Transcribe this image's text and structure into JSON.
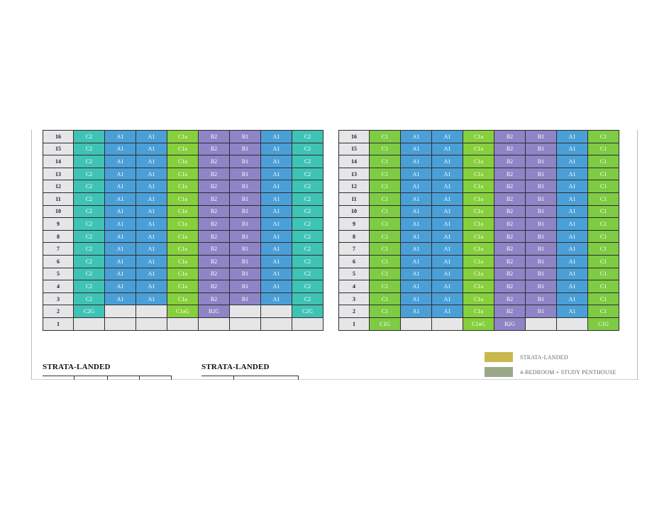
{
  "left_block": {
    "rows": [
      {
        "floor": "16",
        "units": [
          "C2",
          "A1",
          "A1",
          "C1a",
          "B2",
          "B1",
          "A1",
          "C2"
        ]
      },
      {
        "floor": "15",
        "units": [
          "C2",
          "A1",
          "A1",
          "C1a",
          "B2",
          "B1",
          "A1",
          "C2"
        ]
      },
      {
        "floor": "14",
        "units": [
          "C2",
          "A1",
          "A1",
          "C1a",
          "B2",
          "B1",
          "A1",
          "C2"
        ]
      },
      {
        "floor": "13",
        "units": [
          "C2",
          "A1",
          "A1",
          "C1a",
          "B2",
          "B1",
          "A1",
          "C2"
        ]
      },
      {
        "floor": "12",
        "units": [
          "C2",
          "A1",
          "A1",
          "C1a",
          "B2",
          "B1",
          "A1",
          "C2"
        ]
      },
      {
        "floor": "11",
        "units": [
          "C2",
          "A1",
          "A1",
          "C1a",
          "B2",
          "B1",
          "A1",
          "C2"
        ]
      },
      {
        "floor": "10",
        "units": [
          "C2",
          "A1",
          "A1",
          "C1a",
          "B2",
          "B1",
          "A1",
          "C2"
        ]
      },
      {
        "floor": "9",
        "units": [
          "C2",
          "A1",
          "A1",
          "C1a",
          "B2",
          "B1",
          "A1",
          "C2"
        ]
      },
      {
        "floor": "8",
        "units": [
          "C2",
          "A1",
          "A1",
          "C1a",
          "B2",
          "B1",
          "A1",
          "C2"
        ]
      },
      {
        "floor": "7",
        "units": [
          "C2",
          "A1",
          "A1",
          "C1a",
          "B2",
          "B1",
          "A1",
          "C2"
        ]
      },
      {
        "floor": "6",
        "units": [
          "C2",
          "A1",
          "A1",
          "C1a",
          "B2",
          "B1",
          "A1",
          "C2"
        ]
      },
      {
        "floor": "5",
        "units": [
          "C2",
          "A1",
          "A1",
          "C1a",
          "B2",
          "B1",
          "A1",
          "C2"
        ]
      },
      {
        "floor": "4",
        "units": [
          "C2",
          "A1",
          "A1",
          "C1a",
          "B2",
          "B1",
          "A1",
          "C2"
        ]
      },
      {
        "floor": "3",
        "units": [
          "C2",
          "A1",
          "A1",
          "C1a",
          "B2",
          "B1",
          "A1",
          "C2"
        ]
      },
      {
        "floor": "2",
        "units": [
          "C2G",
          "",
          "",
          "C1aG",
          "B2G",
          "",
          "",
          "C2G"
        ]
      },
      {
        "floor": "1",
        "units": [
          "",
          "",
          "",
          "",
          "",
          "",
          "",
          ""
        ]
      }
    ]
  },
  "right_block": {
    "rows": [
      {
        "floor": "16",
        "units": [
          "C1",
          "A1",
          "A1",
          "C1a",
          "B2",
          "B1",
          "A1",
          "C1"
        ]
      },
      {
        "floor": "15",
        "units": [
          "C1",
          "A1",
          "A1",
          "C1a",
          "B2",
          "B1",
          "A1",
          "C1"
        ]
      },
      {
        "floor": "14",
        "units": [
          "C1",
          "A1",
          "A1",
          "C1a",
          "B2",
          "B1",
          "A1",
          "C1"
        ]
      },
      {
        "floor": "13",
        "units": [
          "C1",
          "A1",
          "A1",
          "C1a",
          "B2",
          "B1",
          "A1",
          "C1"
        ]
      },
      {
        "floor": "12",
        "units": [
          "C1",
          "A1",
          "A1",
          "C1a",
          "B2",
          "B1",
          "A1",
          "C1"
        ]
      },
      {
        "floor": "11",
        "units": [
          "C1",
          "A1",
          "A1",
          "C1a",
          "B2",
          "B1",
          "A1",
          "C1"
        ]
      },
      {
        "floor": "10",
        "units": [
          "C1",
          "A1",
          "A1",
          "C1a",
          "B2",
          "B1",
          "A1",
          "C1"
        ]
      },
      {
        "floor": "9",
        "units": [
          "C1",
          "A1",
          "A1",
          "C1a",
          "B2",
          "B1",
          "A1",
          "C1"
        ]
      },
      {
        "floor": "8",
        "units": [
          "C1",
          "A1",
          "A1",
          "C1a",
          "B2",
          "B1",
          "A1",
          "C1"
        ]
      },
      {
        "floor": "7",
        "units": [
          "C1",
          "A1",
          "A1",
          "C1a",
          "B2",
          "B1",
          "A1",
          "C1"
        ]
      },
      {
        "floor": "6",
        "units": [
          "C1",
          "A1",
          "A1",
          "C1a",
          "B2",
          "B1",
          "A1",
          "C1"
        ]
      },
      {
        "floor": "5",
        "units": [
          "C1",
          "A1",
          "A1",
          "C1a",
          "B2",
          "B1",
          "A1",
          "C1"
        ]
      },
      {
        "floor": "4",
        "units": [
          "C1",
          "A1",
          "A1",
          "C1a",
          "B2",
          "B1",
          "A1",
          "C1"
        ]
      },
      {
        "floor": "3",
        "units": [
          "C1",
          "A1",
          "A1",
          "C1a",
          "B2",
          "B1",
          "A1",
          "C1"
        ]
      },
      {
        "floor": "2",
        "units": [
          "C1",
          "A1",
          "A1",
          "C1a",
          "B2",
          "B1",
          "A1",
          "C1"
        ]
      },
      {
        "floor": "1",
        "units": [
          "C1G",
          "",
          "",
          "C1aG",
          "B2G",
          "",
          "",
          "C1G"
        ]
      }
    ]
  },
  "strata": {
    "left_title": "STRATA-LANDED",
    "right_title": "STRATA-LANDED"
  },
  "legend": [
    {
      "label": "STRATA-LANDED",
      "color": "#c9b84e"
    },
    {
      "label": "4-BEDROOM + STUDY PENTHOUSE",
      "color": "#9aa889"
    }
  ],
  "colors": {
    "C2": "#3fc3b5",
    "A1": "#4b9fd7",
    "C1a": "#86cf3d",
    "B": "#8e84c6",
    "C1": "#7ecb44",
    "empty": "#e6e6e9"
  }
}
